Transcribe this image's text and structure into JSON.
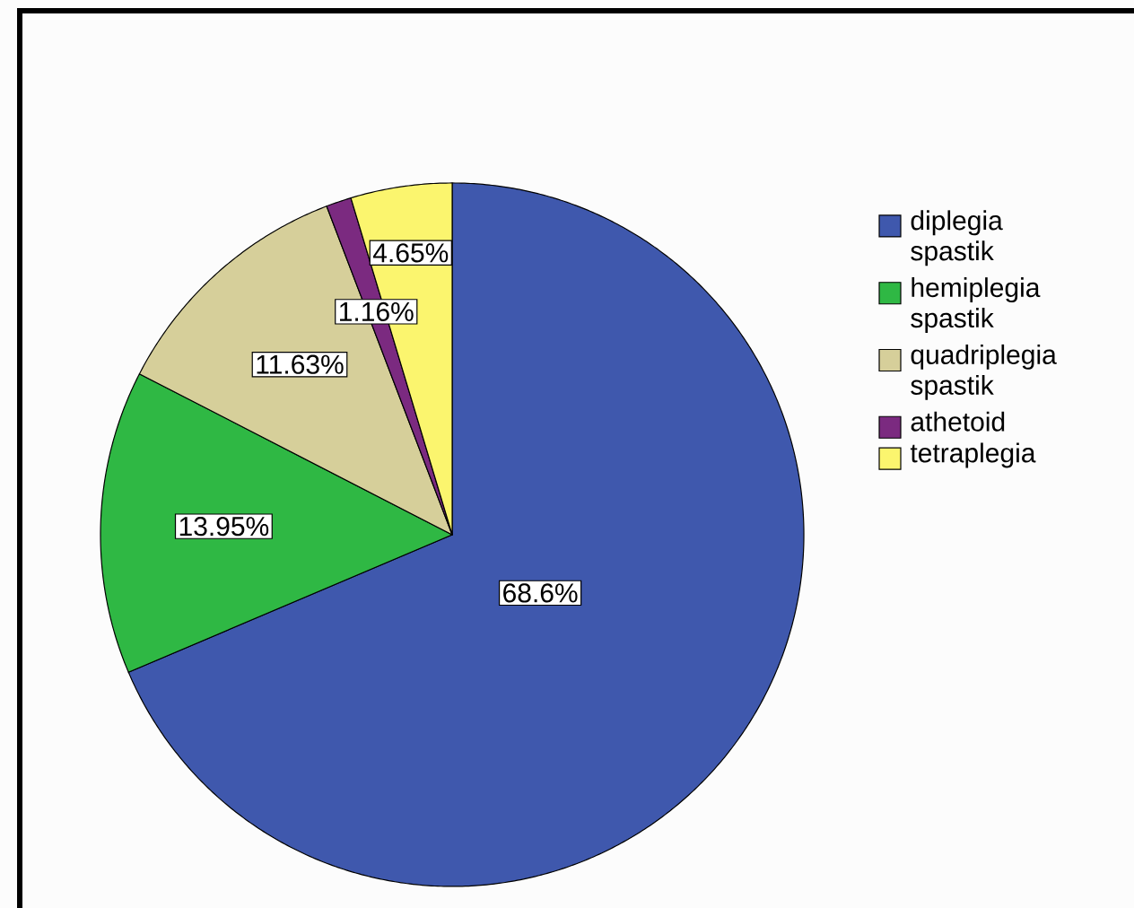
{
  "chart_data": {
    "type": "pie",
    "categories": [
      "diplegia spastik",
      "hemiplegia spastik",
      "quadriplegia spastik",
      "athetoid",
      "tetraplegia"
    ],
    "values": [
      68.6,
      13.95,
      11.63,
      1.16,
      4.65
    ],
    "value_labels": [
      "68.6%",
      "13.95%",
      "11.63%",
      "1.16%",
      "4.65%"
    ],
    "colors": [
      "#3f58ad",
      "#2fb844",
      "#d6cf9a",
      "#7b2a80",
      "#fbf56e"
    ],
    "legend": "right"
  }
}
